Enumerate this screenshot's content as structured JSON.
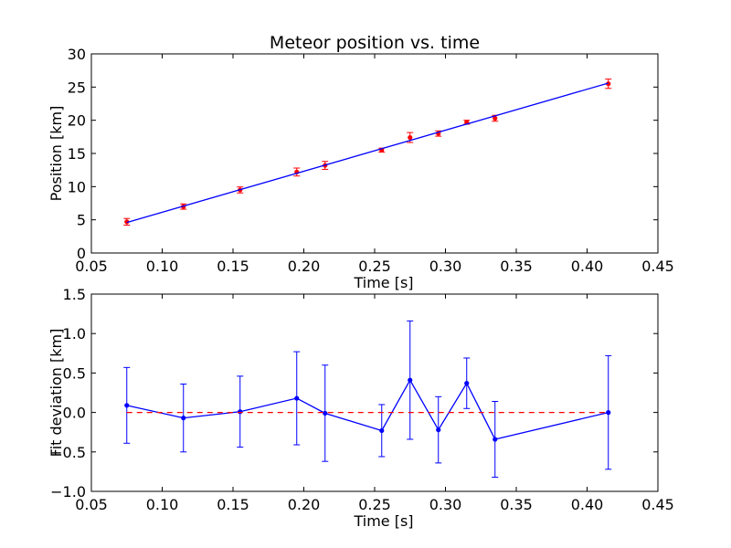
{
  "chart_data": [
    {
      "type": "scatter",
      "title": "Meteor position vs. time",
      "xlabel": "Time [s]",
      "ylabel": "Position [km]",
      "xlim": [
        0.05,
        0.45
      ],
      "ylim": [
        0,
        30
      ],
      "x_ticks": [
        "0.05",
        "0.10",
        "0.15",
        "0.20",
        "0.25",
        "0.30",
        "0.35",
        "0.40",
        "0.45"
      ],
      "y_ticks": [
        "0",
        "5",
        "10",
        "15",
        "20",
        "25",
        "30"
      ],
      "grid": false,
      "series": [
        {
          "kind": "errorbar",
          "color": "#ff0000",
          "x": [
            0.075,
            0.115,
            0.155,
            0.195,
            0.215,
            0.255,
            0.275,
            0.295,
            0.315,
            0.335,
            0.415
          ],
          "y": [
            4.7,
            7.0,
            9.5,
            12.2,
            13.2,
            15.5,
            17.4,
            18.0,
            19.7,
            20.3,
            25.5
          ],
          "yerr": [
            0.5,
            0.4,
            0.45,
            0.6,
            0.6,
            0.3,
            0.75,
            0.4,
            0.3,
            0.45,
            0.7
          ]
        },
        {
          "kind": "line",
          "color": "#0000ff",
          "x": [
            0.075,
            0.415
          ],
          "y": [
            4.6,
            25.6
          ]
        }
      ]
    },
    {
      "type": "line",
      "title": "",
      "xlabel": "Time [s]",
      "ylabel": "Fit deviation [km]",
      "xlim": [
        0.05,
        0.45
      ],
      "ylim": [
        -1.0,
        1.5
      ],
      "x_ticks": [
        "0.05",
        "0.10",
        "0.15",
        "0.20",
        "0.25",
        "0.30",
        "0.35",
        "0.40",
        "0.45"
      ],
      "y_ticks": [
        "−1.0",
        "−0.5",
        "0.0",
        "0.5",
        "1.0",
        "1.5"
      ],
      "grid": false,
      "series": [
        {
          "kind": "errorbar-line",
          "color": "#0000ff",
          "x": [
            0.075,
            0.115,
            0.155,
            0.195,
            0.215,
            0.255,
            0.275,
            0.295,
            0.315,
            0.335,
            0.415
          ],
          "y": [
            0.09,
            -0.07,
            0.01,
            0.18,
            -0.01,
            -0.23,
            0.41,
            -0.22,
            0.37,
            -0.34,
            0.0
          ],
          "yerr": [
            0.48,
            0.43,
            0.45,
            0.59,
            0.61,
            0.33,
            0.75,
            0.42,
            0.32,
            0.48,
            0.72
          ]
        },
        {
          "kind": "hline",
          "style": "dashed",
          "color": "#ff0000",
          "x": [
            0.075,
            0.415
          ],
          "y": [
            0.0,
            0.0
          ]
        }
      ]
    }
  ]
}
